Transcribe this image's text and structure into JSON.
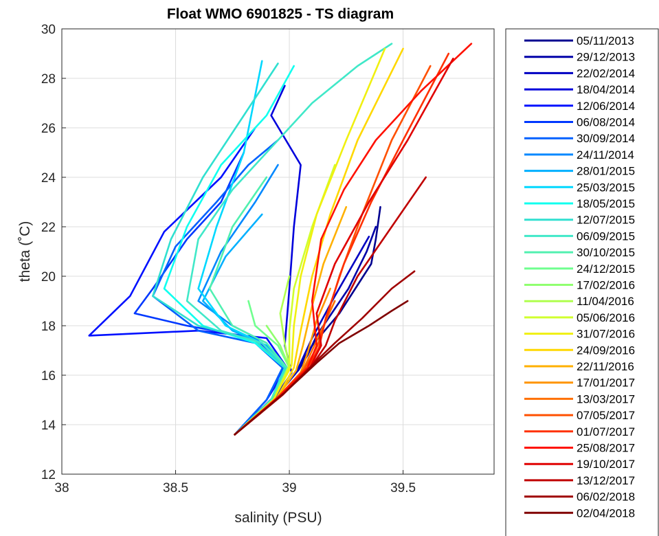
{
  "chart_data": {
    "type": "line",
    "title": "Float WMO 6901825 - TS diagram",
    "xlabel": "salinity (PSU)",
    "ylabel": "theta (˚C)",
    "xlim": [
      38,
      39.9
    ],
    "ylim": [
      12,
      30
    ],
    "xticks": [
      "38",
      "38.5",
      "39",
      "39.5"
    ],
    "yticks": [
      "12",
      "14",
      "16",
      "18",
      "20",
      "22",
      "24",
      "26",
      "28",
      "30"
    ],
    "grid": true,
    "legend_position": "outside-right",
    "series": [
      {
        "name": "05/11/2013",
        "color": "#00008f",
        "x": [
          38.76,
          38.92,
          39.02,
          39.06,
          39.1,
          39.22,
          39.36,
          39.38,
          39.4
        ],
        "y": [
          13.6,
          15,
          16,
          16.6,
          17.2,
          18.5,
          20.5,
          21.5,
          22.8
        ]
      },
      {
        "name": "29/12/2013",
        "color": "#0000a8",
        "x": [
          38.76,
          38.94,
          39.04,
          39.08,
          39.12,
          39.26,
          39.34,
          39.38
        ],
        "y": [
          13.6,
          15.2,
          16.2,
          16.8,
          17.6,
          19.5,
          21,
          22
        ]
      },
      {
        "name": "22/02/2014",
        "color": "#0000c2",
        "x": [
          38.76,
          38.94,
          39.03,
          39.06,
          39.1,
          39.2,
          39.3,
          39.35
        ],
        "y": [
          13.6,
          15.1,
          16.1,
          16.7,
          17.5,
          19.2,
          20.8,
          21.6
        ]
      },
      {
        "name": "18/04/2014",
        "color": "#0000dc",
        "x": [
          38.76,
          38.93,
          39.01,
          38.98,
          39.0,
          39.02,
          39.05,
          38.92,
          38.98
        ],
        "y": [
          13.6,
          15.0,
          16.1,
          17.2,
          19.5,
          22,
          24.5,
          26.5,
          27.7
        ]
      },
      {
        "name": "12/06/2014",
        "color": "#0010ff",
        "x": [
          38.76,
          38.9,
          38.99,
          38.9,
          38.6,
          38.12,
          38.3,
          38.45,
          38.7,
          38.85
        ],
        "y": [
          13.6,
          15,
          16.3,
          17.5,
          17.8,
          17.6,
          19.2,
          21.8,
          24,
          26
        ]
      },
      {
        "name": "06/08/2014",
        "color": "#0038ff",
        "x": [
          38.76,
          38.9,
          38.98,
          38.85,
          38.55,
          38.32,
          38.4,
          38.55,
          38.7,
          38.8
        ],
        "y": [
          13.6,
          15,
          16.4,
          17.5,
          18,
          18.5,
          19.5,
          21.5,
          23,
          25
        ]
      },
      {
        "name": "30/09/2014",
        "color": "#0060ff",
        "x": [
          38.76,
          38.9,
          38.97,
          38.85,
          38.6,
          38.4,
          38.5,
          38.68,
          38.82,
          38.95
        ],
        "y": [
          13.6,
          15,
          16.3,
          17.3,
          17.8,
          19.2,
          21.2,
          23,
          24.5,
          25.5
        ]
      },
      {
        "name": "24/11/2014",
        "color": "#0088ff",
        "x": [
          38.76,
          38.92,
          38.98,
          38.9,
          38.75,
          38.6,
          38.7,
          38.85,
          38.95
        ],
        "y": [
          13.6,
          15,
          16.3,
          17.3,
          18,
          19,
          21,
          23,
          24.5
        ]
      },
      {
        "name": "28/01/2015",
        "color": "#00b0ff",
        "x": [
          38.76,
          38.92,
          38.98,
          38.9,
          38.75,
          38.62,
          38.72,
          38.88
        ],
        "y": [
          13.6,
          15,
          16.3,
          17.2,
          17.8,
          19,
          20.8,
          22.5
        ]
      },
      {
        "name": "25/03/2015",
        "color": "#00d8ff",
        "x": [
          38.76,
          38.92,
          38.98,
          38.88,
          38.72,
          38.6,
          38.68,
          38.8,
          38.88
        ],
        "y": [
          13.6,
          15,
          16.3,
          17.3,
          18,
          19.5,
          22,
          25,
          28.7
        ]
      },
      {
        "name": "18/05/2015",
        "color": "#10ffef",
        "x": [
          38.76,
          38.92,
          38.98,
          38.85,
          38.62,
          38.45,
          38.55,
          38.7,
          38.9,
          39.02
        ],
        "y": [
          13.6,
          15,
          16.3,
          17.3,
          18,
          19.5,
          22,
          24.5,
          26.5,
          28.5
        ]
      },
      {
        "name": "12/07/2015",
        "color": "#30e0d0",
        "x": [
          38.76,
          38.92,
          38.98,
          38.85,
          38.6,
          38.4,
          38.48,
          38.62,
          38.8,
          38.95
        ],
        "y": [
          13.6,
          15,
          16.3,
          17.4,
          18,
          19.2,
          21.5,
          24,
          26.5,
          28.6
        ]
      },
      {
        "name": "06/09/2015",
        "color": "#40e8c8",
        "x": [
          38.76,
          38.92,
          38.99,
          38.88,
          38.7,
          38.55,
          38.6,
          38.75,
          38.95,
          39.1,
          39.3,
          39.45
        ],
        "y": [
          13.6,
          15,
          16.3,
          17.3,
          17.8,
          19,
          21.5,
          23.5,
          25.5,
          27,
          28.5,
          29.4
        ]
      },
      {
        "name": "30/10/2015",
        "color": "#50f0b0",
        "x": [
          38.76,
          38.92,
          38.99,
          38.9,
          38.75,
          38.65,
          38.75,
          38.9
        ],
        "y": [
          13.6,
          15,
          16.3,
          17.3,
          18,
          19.5,
          22,
          24
        ]
      },
      {
        "name": "24/12/2015",
        "color": "#70ff8f",
        "x": [
          38.76,
          38.93,
          39.0,
          38.95,
          38.85,
          38.82
        ],
        "y": [
          13.6,
          15,
          16.3,
          17.2,
          18,
          19
        ]
      },
      {
        "name": "17/02/2016",
        "color": "#90ff6f",
        "x": [
          38.76,
          38.93,
          39.0,
          38.96,
          38.9
        ],
        "y": [
          13.6,
          15,
          16.3,
          17.2,
          18
        ]
      },
      {
        "name": "11/04/2016",
        "color": "#b0ff4f",
        "x": [
          38.76,
          38.93,
          39.0,
          38.98,
          38.96,
          39.0
        ],
        "y": [
          13.6,
          15,
          16.3,
          17.3,
          18.5,
          20
        ]
      },
      {
        "name": "05/06/2016",
        "color": "#d0ff2f",
        "x": [
          38.76,
          38.93,
          39.0,
          39.0,
          39.02,
          39.1,
          39.2
        ],
        "y": [
          13.6,
          15,
          16.4,
          17.8,
          19.5,
          22,
          24.5
        ]
      },
      {
        "name": "31/07/2016",
        "color": "#f0f010",
        "x": [
          38.76,
          38.93,
          39.01,
          39.02,
          39.05,
          39.12,
          39.25,
          39.42
        ],
        "y": [
          13.6,
          15,
          16.4,
          18,
          20,
          22.5,
          25.5,
          29.2
        ]
      },
      {
        "name": "24/09/2016",
        "color": "#ffd800",
        "x": [
          38.76,
          38.94,
          39.02,
          39.05,
          39.1,
          39.18,
          39.3,
          39.5
        ],
        "y": [
          13.6,
          15,
          16.3,
          17.8,
          20,
          22.5,
          25.5,
          29.2
        ]
      },
      {
        "name": "22/11/2016",
        "color": "#ffb000",
        "x": [
          38.76,
          38.94,
          39.03,
          39.06,
          39.1,
          39.15,
          39.25
        ],
        "y": [
          13.6,
          15,
          16.2,
          17.2,
          18.8,
          20.5,
          22.8
        ]
      },
      {
        "name": "17/01/2017",
        "color": "#ff9400",
        "x": [
          38.76,
          38.95,
          39.05,
          39.08,
          39.12,
          39.18
        ],
        "y": [
          13.6,
          15.1,
          16.1,
          16.9,
          18.2,
          19.5
        ]
      },
      {
        "name": "13/03/2017",
        "color": "#ff7000",
        "x": [
          38.76,
          38.95,
          39.06,
          39.1,
          39.15,
          39.2
        ],
        "y": [
          13.6,
          15.1,
          16.2,
          17,
          18,
          19
        ]
      },
      {
        "name": "07/05/2017",
        "color": "#ff5000",
        "x": [
          38.76,
          38.96,
          39.07,
          39.12,
          39.16,
          39.22,
          39.32,
          39.45,
          39.62
        ],
        "y": [
          13.6,
          15.2,
          16.3,
          17.1,
          18.2,
          20,
          22.5,
          25.5,
          28.5
        ]
      },
      {
        "name": "01/07/2017",
        "color": "#ff3000",
        "x": [
          38.76,
          38.96,
          39.08,
          39.13,
          39.16,
          39.24,
          39.36,
          39.5,
          39.7
        ],
        "y": [
          13.6,
          15.2,
          16.3,
          17.1,
          18.3,
          20.5,
          23,
          25.5,
          29
        ]
      },
      {
        "name": "25/08/2017",
        "color": "#ff1000",
        "x": [
          38.76,
          38.96,
          39.08,
          39.12,
          39.1,
          39.14,
          39.24,
          39.38,
          39.58,
          39.8
        ],
        "y": [
          13.6,
          15.2,
          16.3,
          17.2,
          19,
          21.5,
          23.5,
          25.5,
          27.5,
          29.4
        ]
      },
      {
        "name": "19/10/2017",
        "color": "#e00000",
        "x": [
          38.76,
          38.97,
          39.09,
          39.14,
          39.12,
          39.2,
          39.35,
          39.52,
          39.72
        ],
        "y": [
          13.6,
          15.2,
          16.3,
          17.2,
          18.5,
          20.5,
          23,
          25.5,
          28.8
        ]
      },
      {
        "name": "13/12/2017",
        "color": "#c00000",
        "x": [
          38.76,
          38.97,
          39.1,
          39.16,
          39.2,
          39.3,
          39.45,
          39.6
        ],
        "y": [
          13.6,
          15.2,
          16.4,
          17.2,
          18.2,
          20,
          22,
          24
        ]
      },
      {
        "name": "06/02/2018",
        "color": "#a00000",
        "x": [
          38.76,
          38.98,
          39.11,
          39.2,
          39.32,
          39.45,
          39.55
        ],
        "y": [
          13.6,
          15.3,
          16.5,
          17.3,
          18.3,
          19.5,
          20.2
        ]
      },
      {
        "name": "02/04/2018",
        "color": "#800000",
        "x": [
          38.76,
          38.98,
          39.12,
          39.22,
          39.35,
          39.45,
          39.52
        ],
        "y": [
          13.6,
          15.3,
          16.5,
          17.3,
          18.0,
          18.6,
          19.0
        ]
      }
    ]
  }
}
